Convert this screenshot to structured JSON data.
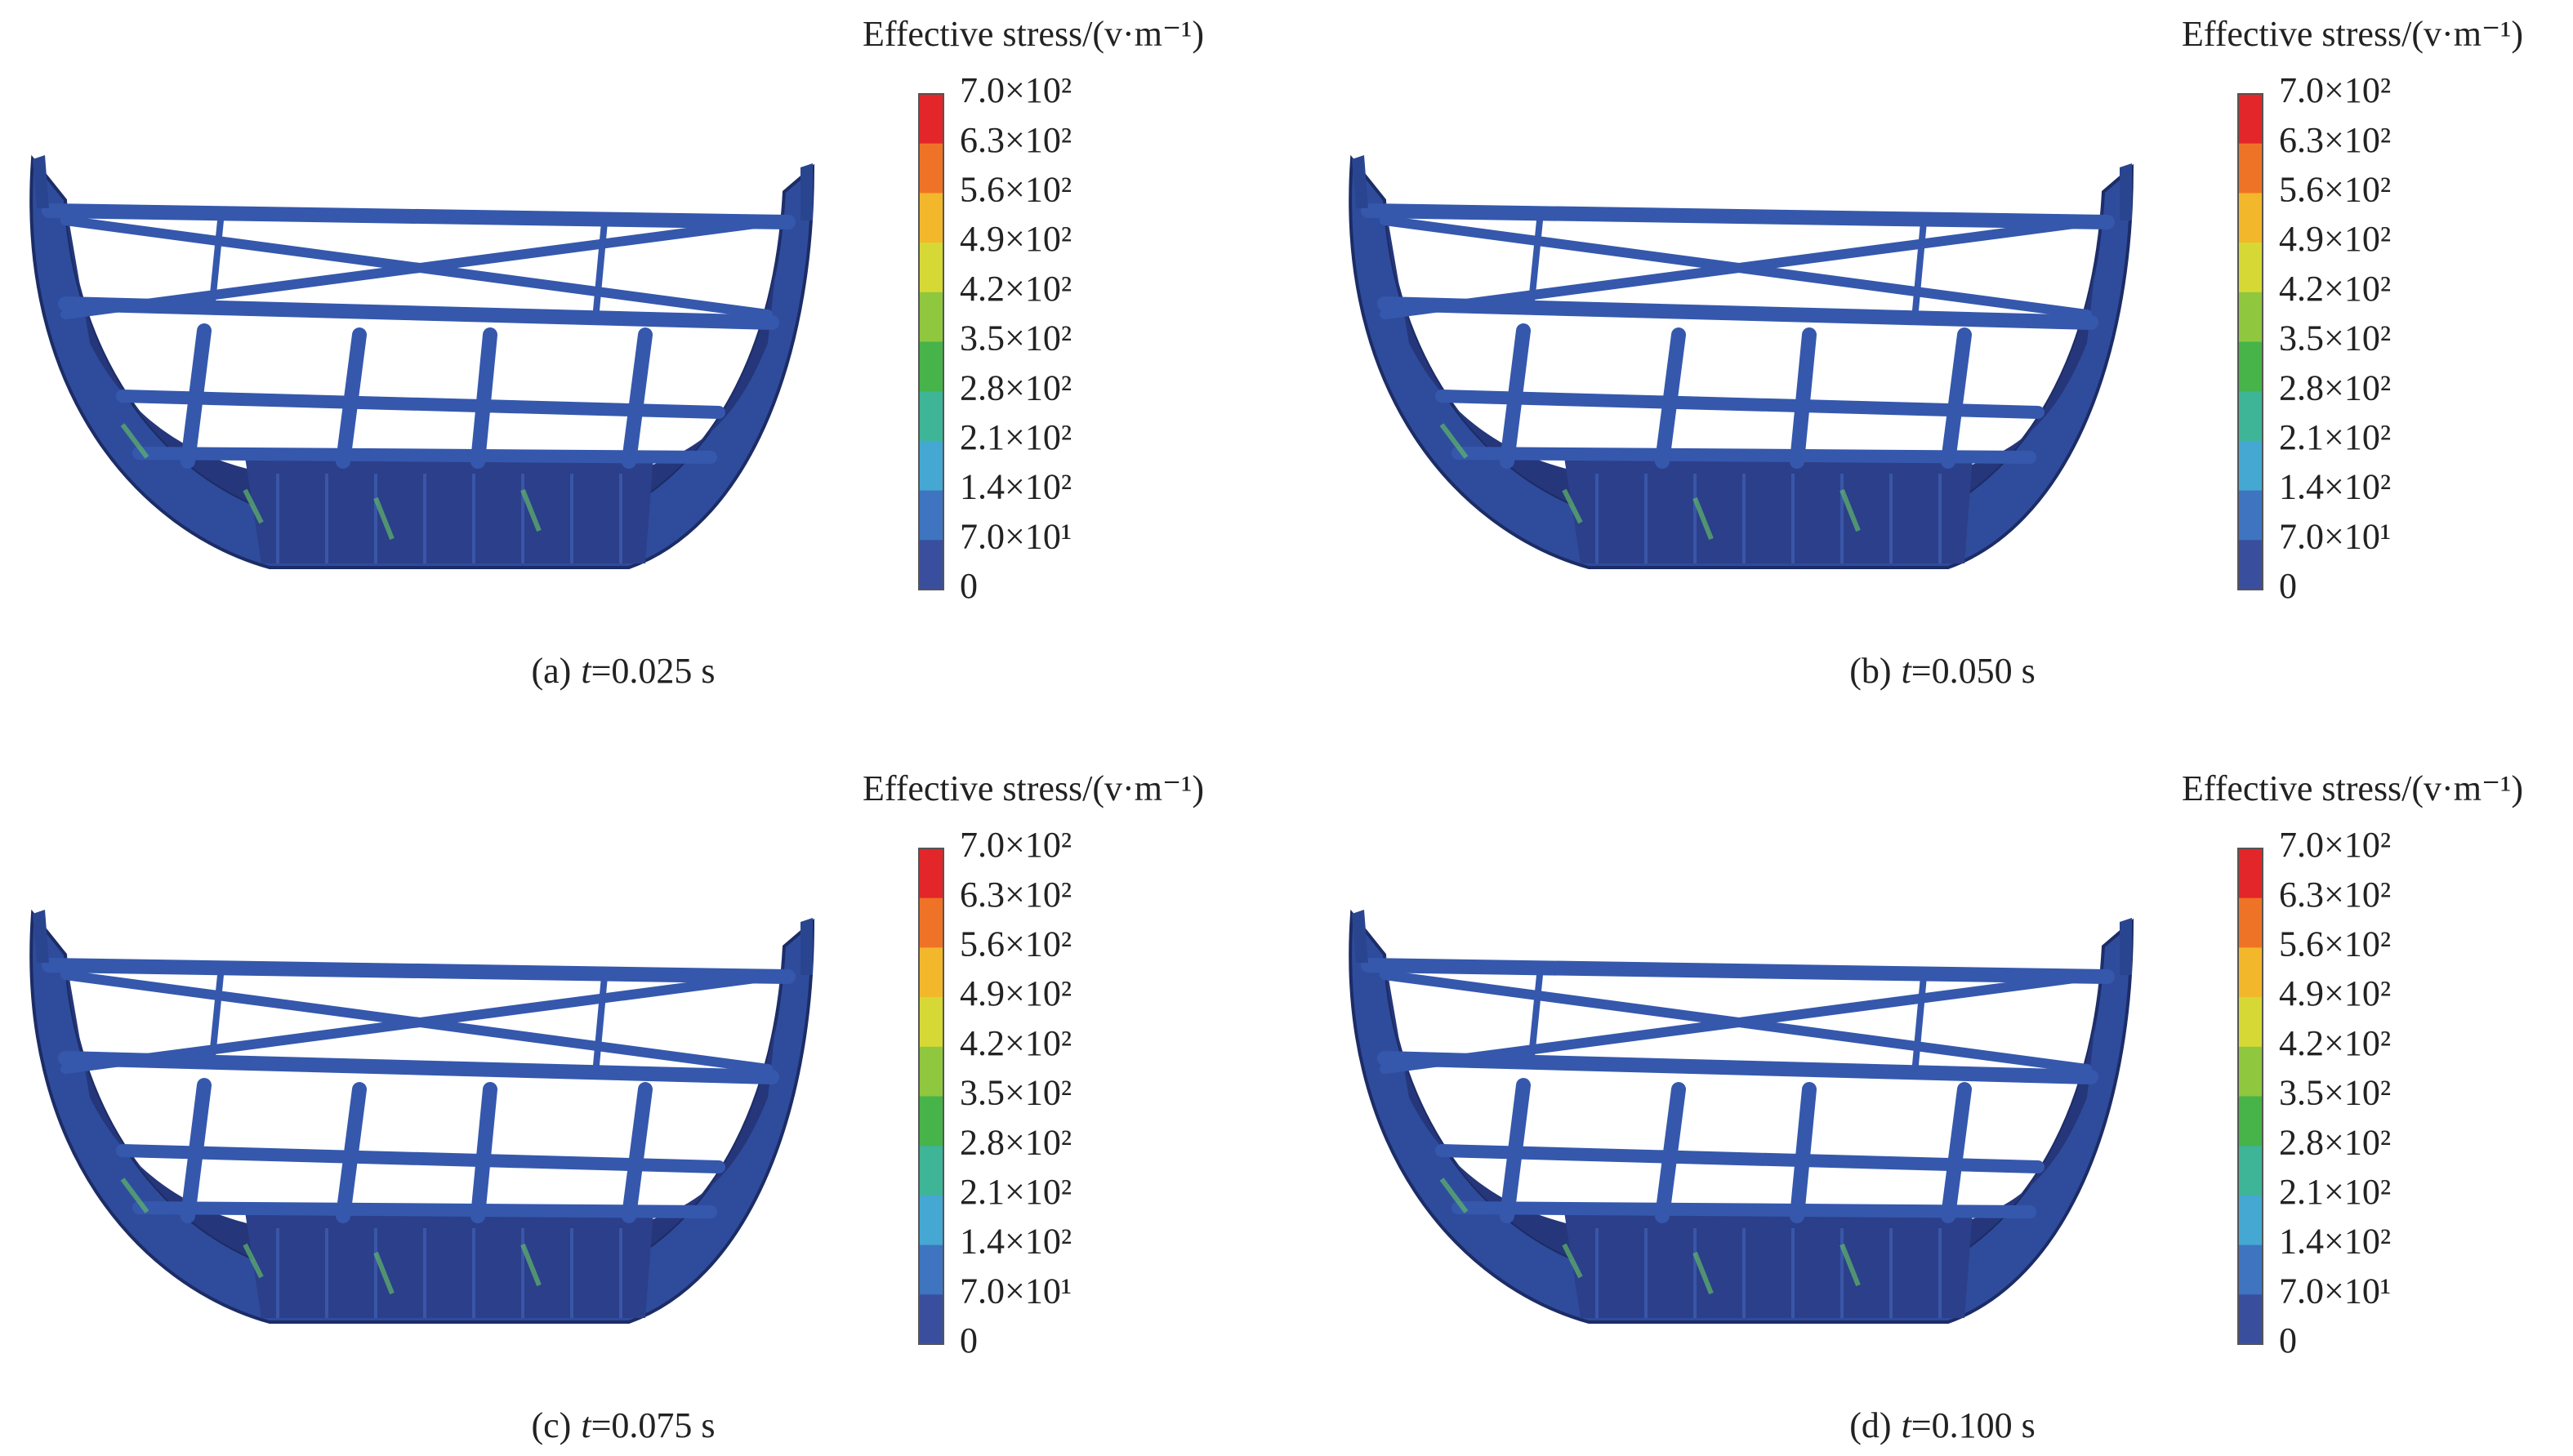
{
  "colorbar_colors": [
    "#e3262a",
    "#ef7326",
    "#f3b72b",
    "#d6d935",
    "#8fc73f",
    "#46b448",
    "#3db596",
    "#45a8d2",
    "#3e74c0",
    "#3a4e9e"
  ],
  "panels": [
    {
      "colorbar": {
        "title": "Effective stress/(v·m⁻¹)",
        "ticks": [
          "7.0×10²",
          "6.3×10²",
          "5.6×10²",
          "4.9×10²",
          "4.2×10²",
          "3.5×10²",
          "2.8×10²",
          "2.1×10²",
          "1.4×10²",
          "7.0×10¹",
          "0"
        ]
      },
      "caption": {
        "label": "(a)",
        "variable": "t",
        "value": "=0.025 s"
      }
    },
    {
      "colorbar": {
        "title": "Effective stress/(v·m⁻¹)",
        "ticks": [
          "7.0×10²",
          "6.3×10²",
          "5.6×10²",
          "4.9×10²",
          "4.2×10²",
          "3.5×10²",
          "2.8×10²",
          "2.1×10²",
          "1.4×10²",
          "7.0×10¹",
          "0"
        ]
      },
      "caption": {
        "label": "(b)",
        "variable": "t",
        "value": "=0.050 s"
      }
    },
    {
      "colorbar": {
        "title": "Effective stress/(v·m⁻¹)",
        "ticks": [
          "7.0×10²",
          "6.3×10²",
          "5.6×10²",
          "4.9×10²",
          "4.2×10²",
          "3.5×10²",
          "2.8×10²",
          "2.1×10²",
          "1.4×10²",
          "7.0×10¹",
          "0"
        ]
      },
      "caption": {
        "label": "(c)",
        "variable": "t",
        "value": "=0.075 s"
      }
    },
    {
      "colorbar": {
        "title": "Effective stress/(v·m⁻¹)",
        "ticks": [
          "7.0×10²",
          "6.3×10²",
          "5.6×10²",
          "4.9×10²",
          "4.2×10²",
          "3.5×10²",
          "2.8×10²",
          "2.1×10²",
          "1.4×10²",
          "7.0×10¹",
          "0"
        ]
      },
      "caption": {
        "label": "(d)",
        "variable": "t",
        "value": "=0.100 s"
      }
    }
  ]
}
